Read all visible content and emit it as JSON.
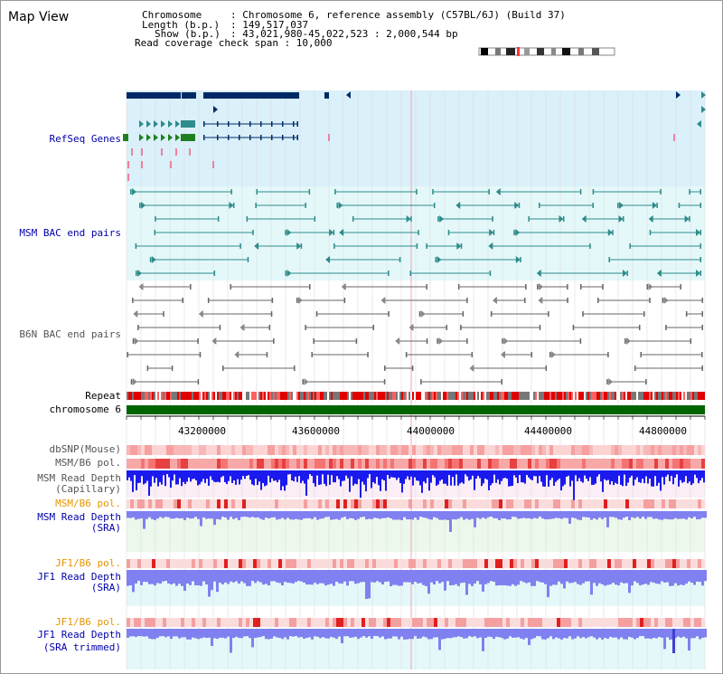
{
  "page": {
    "title": "Map View"
  },
  "info": {
    "chromosome_key": "Chromosome",
    "chromosome_val": ": Chromosome 6, reference assembly (C57BL/6J) (Build 37)",
    "length_key": "Length (b.p.)",
    "length_val": ": 149,517,037",
    "show_key": "Show (b.p.)",
    "show_val": ": 43,021,980-45,022,523 : 2,000,544 bp",
    "coverage_line": "Read coverage check span : 10,000"
  },
  "tracks": {
    "refseq": "RefSeq Genes",
    "msm_bac": "MSM BAC end pairs",
    "b6n_bac": "B6N BAC end pairs",
    "repeat": "Repeat",
    "chromosome": "chromosome 6",
    "dbsnp": "dbSNP(Mouse)",
    "msm_b6_pol_1": "MSM/B6 pol.",
    "msm_read_depth_cap_1": "MSM Read Depth",
    "msm_read_depth_cap_2": "(Capillary)",
    "msm_b6_pol_2": "MSM/B6 pol.",
    "msm_read_depth_sra_1": "MSM Read Depth",
    "msm_read_depth_sra_2": "(SRA)",
    "jf1_b6_pol_1": "JF1/B6 pol.",
    "jf1_read_depth_sra_1": "JF1 Read Depth",
    "jf1_read_depth_sra_2": "(SRA)",
    "jf1_b6_pol_2": "JF1/B6 pol.",
    "jf1_read_depth_trim_1": "JF1 Read Depth",
    "jf1_read_depth_trim_2": "(SRA trimmed)"
  },
  "axis": {
    "ticks": [
      "43200000",
      "43600000",
      "44000000",
      "44400000",
      "44800000"
    ]
  },
  "colors": {
    "label_blue": "#0000aa",
    "label_orange": "#e69500",
    "label_gray": "#555555",
    "refseq_bg": "#daf0fa",
    "bac_bg": "#e4f8fa",
    "read_pink_bg": "#fbeef6",
    "read_green_bg": "#ecf8ec",
    "chromosome_green": "#006400",
    "gene_dark": "#002a66",
    "gene_teal": "#2e8b8b",
    "gene_green": "#208020",
    "depth_blue": "#1a1aee",
    "depth_light": "#8080f0"
  }
}
